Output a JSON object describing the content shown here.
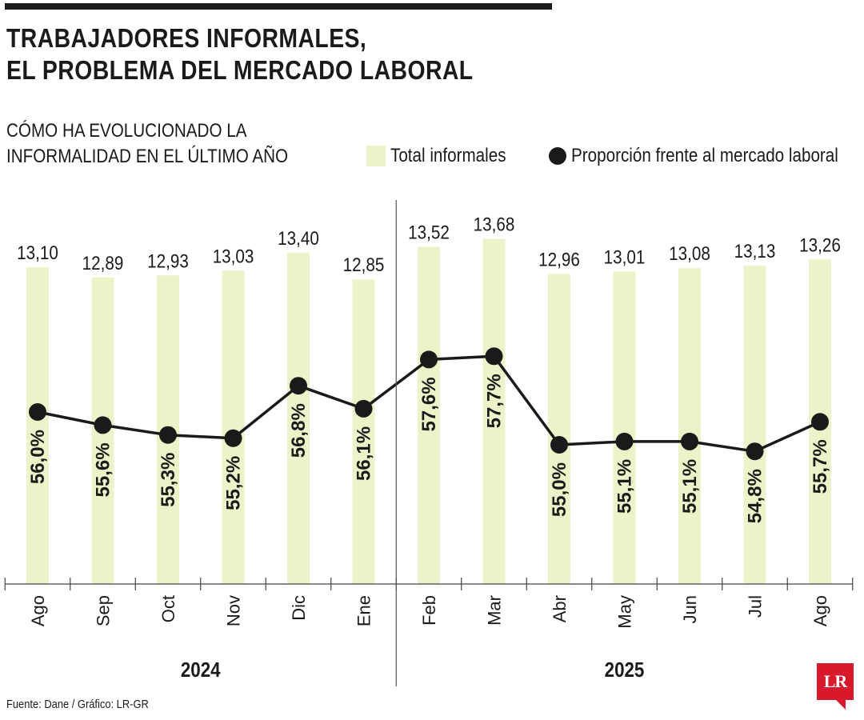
{
  "header": {
    "title_line1": "TRABAJADORES INFORMALES,",
    "title_line2": "EL PROBLEMA DEL MERCADO LABORAL",
    "subtitle_line1": "CÓMO HA EVOLUCIONADO LA",
    "subtitle_line2": "INFORMALIDAD EN EL ÚLTIMO AÑO"
  },
  "legend": {
    "bars": "Total informales",
    "line": "Proporción frente al mercado laboral"
  },
  "footer": {
    "source": "Fuente: Dane / Gráfico: LR-GR",
    "logo": "LR"
  },
  "colors": {
    "bar": "#eef2c8",
    "line": "#1a1a1a",
    "logo": "#d7192b"
  },
  "chart_data": {
    "type": "bar",
    "categories": [
      "Ago",
      "Sep",
      "Oct",
      "Nov",
      "Dic",
      "Ene",
      "Feb",
      "Mar",
      "Abr",
      "May",
      "Jun",
      "Jul",
      "Ago"
    ],
    "years": [
      {
        "label": "2024",
        "from": 0,
        "to": 5
      },
      {
        "label": "2025",
        "from": 6,
        "to": 12
      }
    ],
    "series": [
      {
        "name": "Total informales",
        "type": "bar",
        "values": [
          13.1,
          12.89,
          12.93,
          13.03,
          13.4,
          12.85,
          13.52,
          13.68,
          12.96,
          13.01,
          13.08,
          13.13,
          13.26
        ],
        "labels": [
          "13,10",
          "12,89",
          "12,93",
          "13,03",
          "13,40",
          "12,85",
          "13,52",
          "13,68",
          "12,96",
          "13,01",
          "13,08",
          "13,13",
          "13,26"
        ]
      },
      {
        "name": "Proporción frente al mercado laboral",
        "type": "line",
        "values": [
          56.0,
          55.6,
          55.3,
          55.2,
          56.8,
          56.1,
          57.6,
          57.7,
          55.0,
          55.1,
          55.1,
          54.8,
          55.7
        ],
        "labels": [
          "56,0%",
          "55,6%",
          "55,3%",
          "55,2%",
          "56,8%",
          "56,1%",
          "57,6%",
          "57,7%",
          "55,0%",
          "55,1%",
          "55,1%",
          "54,8%",
          "55,7%"
        ]
      }
    ],
    "grid": false
  }
}
